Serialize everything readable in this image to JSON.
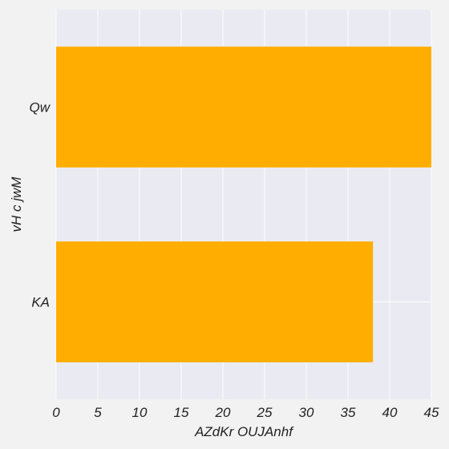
{
  "chart_data": {
    "type": "bar",
    "orientation": "horizontal",
    "categories": [
      "Qw",
      "KA"
    ],
    "values": [
      45,
      38
    ],
    "xlabel": "AZdKr OUJAnhf",
    "ylabel": "vH c jwM",
    "xlim": [
      0,
      45
    ],
    "xticks": [
      0,
      5,
      10,
      15,
      20,
      25,
      30,
      35,
      40,
      45
    ],
    "grid": true,
    "bar_color": "#ffae00",
    "plot_background": "#eaeaf2",
    "figure_background": "#f2f2f2",
    "grid_color": "#ffffff"
  }
}
